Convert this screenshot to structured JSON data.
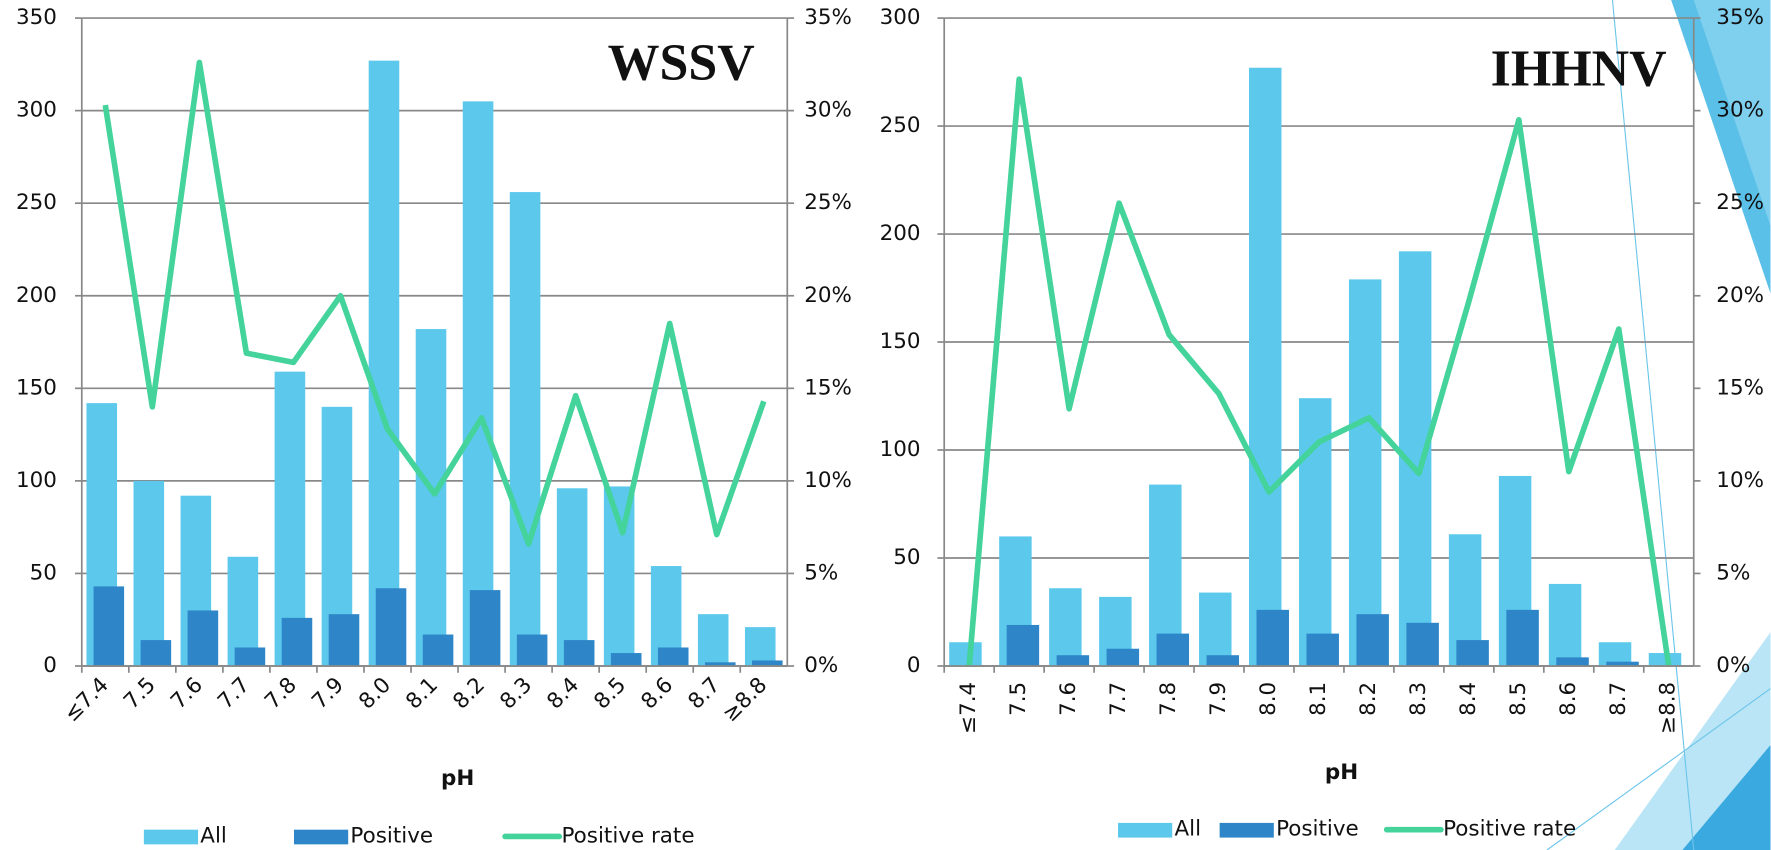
{
  "chart_data": [
    {
      "type": "bar_line",
      "title": "WSSV",
      "x_label": "pH",
      "categories": [
        "≤7.4",
        "7.5",
        "7.6",
        "7.7",
        "7.8",
        "7.9",
        "8.0",
        "8.1",
        "8.2",
        "8.3",
        "8.4",
        "8.5",
        "8.6",
        "8.7",
        "≥8.8"
      ],
      "series": [
        {
          "name": "All",
          "color": "#5bc8ec",
          "values": [
            142,
            100,
            92,
            59,
            159,
            140,
            327,
            182,
            305,
            256,
            96,
            97,
            54,
            28,
            21
          ]
        },
        {
          "name": "Positive",
          "color": "#2e86c8",
          "values": [
            43,
            14,
            30,
            10,
            26,
            28,
            42,
            17,
            41,
            17,
            14,
            7,
            10,
            2,
            3
          ]
        },
        {
          "name": "Positive rate",
          "color": "#43d39b",
          "axis": "y2",
          "values": [
            30.3,
            14,
            32.6,
            16.9,
            16.4,
            20,
            12.8,
            9.3,
            13.4,
            6.6,
            14.6,
            7.2,
            18.5,
            7.1,
            14.3
          ]
        }
      ],
      "ylim": [
        0,
        350
      ],
      "yticks": [
        0,
        50,
        100,
        150,
        200,
        250,
        300,
        350
      ],
      "y2lim": [
        0,
        35
      ],
      "y2ticks": [
        {
          "value": 0,
          "label": "0%"
        },
        {
          "value": 5,
          "label": "5%"
        },
        {
          "value": 10,
          "label": "10%"
        },
        {
          "value": 15,
          "label": "15%"
        },
        {
          "value": 20,
          "label": "20%"
        },
        {
          "value": 25,
          "label": "25%"
        },
        {
          "value": 30,
          "label": "30%"
        },
        {
          "value": 35,
          "label": "35%"
        }
      ],
      "grid": true
    },
    {
      "type": "bar_line",
      "title": "IHHNV",
      "x_label": "pH",
      "categories": [
        "≤7.4",
        "7.5",
        "7.6",
        "7.7",
        "7.8",
        "7.9",
        "8.0",
        "8.1",
        "8.2",
        "8.3",
        "8.4",
        "8.5",
        "8.6",
        "8.7",
        "≥8.8"
      ],
      "series": [
        {
          "name": "All",
          "color": "#5bc8ec",
          "values": [
            11,
            60,
            36,
            32,
            84,
            34,
            277,
            124,
            179,
            192,
            61,
            88,
            38,
            11,
            6
          ]
        },
        {
          "name": "Positive",
          "color": "#2e86c8",
          "values": [
            0,
            19,
            5,
            8,
            15,
            5,
            26,
            15,
            24,
            20,
            12,
            26,
            4,
            2,
            0
          ]
        },
        {
          "name": "Positive rate",
          "color": "#43d39b",
          "axis": "y2",
          "values": [
            0,
            31.7,
            13.9,
            25,
            17.9,
            14.7,
            9.4,
            12.1,
            13.4,
            10.4,
            19.7,
            29.5,
            10.5,
            18.2,
            0
          ]
        }
      ],
      "ylim": [
        0,
        300
      ],
      "yticks": [
        0,
        50,
        100,
        150,
        200,
        250,
        300
      ],
      "y2lim": [
        0,
        35
      ],
      "y2ticks": [
        {
          "value": 0,
          "label": "0%"
        },
        {
          "value": 5,
          "label": "5%"
        },
        {
          "value": 10,
          "label": "10%"
        },
        {
          "value": 15,
          "label": "15%"
        },
        {
          "value": 20,
          "label": "20%"
        },
        {
          "value": 25,
          "label": "25%"
        },
        {
          "value": 30,
          "label": "30%"
        },
        {
          "value": 35,
          "label": "35%"
        }
      ],
      "grid": true
    }
  ]
}
